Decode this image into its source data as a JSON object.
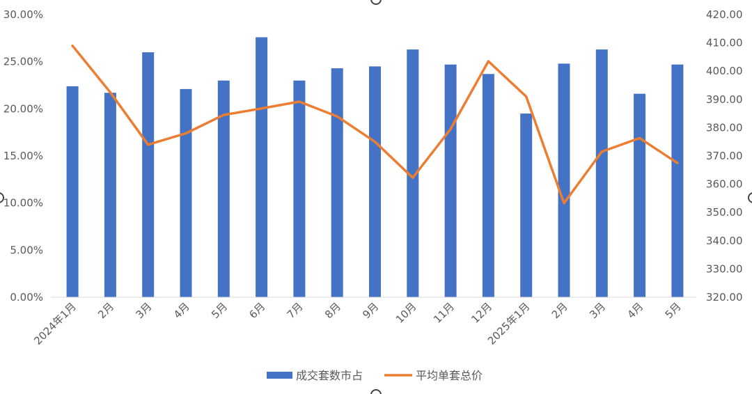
{
  "chart_data": {
    "type": "bar+line",
    "categories": [
      "2024年1月",
      "2月",
      "3月",
      "4月",
      "5月",
      "6月",
      "7月",
      "8月",
      "9月",
      "10月",
      "11月",
      "12月",
      "2025年1月",
      "2月",
      "3月",
      "4月",
      "5月"
    ],
    "series": [
      {
        "name": "成交套数市占",
        "type": "bar",
        "axis": "left",
        "values": [
          0.224,
          0.217,
          0.26,
          0.221,
          0.23,
          0.276,
          0.23,
          0.243,
          0.245,
          0.263,
          0.247,
          0.237,
          0.195,
          0.248,
          0.263,
          0.216,
          0.247
        ]
      },
      {
        "name": "平均单套总价",
        "type": "line",
        "axis": "right",
        "values": [
          409.0,
          392.5,
          374.0,
          378.0,
          384.5,
          386.8,
          389.2,
          384.0,
          375.0,
          362.3,
          379.5,
          403.5,
          391.0,
          353.3,
          371.5,
          376.3,
          367.5
        ]
      }
    ],
    "y_left": {
      "ylim": [
        0,
        0.3
      ],
      "ticks": [
        "0.00%",
        "5.00%",
        "10.00%",
        "15.00%",
        "20.00%",
        "25.00%",
        "30.00%"
      ]
    },
    "y_right": {
      "ylim": [
        320,
        420
      ],
      "ticks": [
        "320.00",
        "330.00",
        "340.00",
        "350.00",
        "360.00",
        "370.00",
        "380.00",
        "390.00",
        "400.00",
        "410.00",
        "420.00"
      ]
    },
    "legend_position": "bottom",
    "grid": false,
    "colors": {
      "bar": "#4472C4",
      "line": "#ED7D31",
      "axis": "#D9D9D9",
      "text": "#595959"
    }
  }
}
